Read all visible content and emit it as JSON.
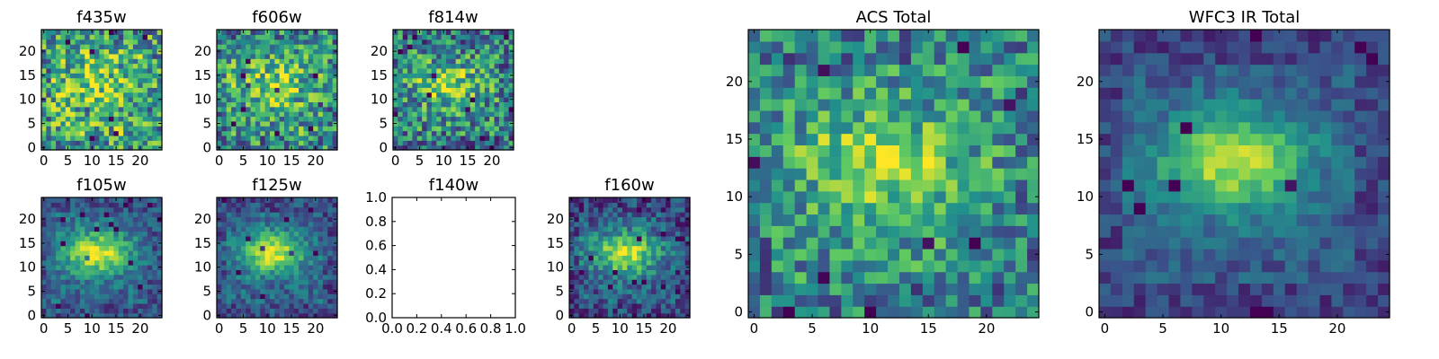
{
  "colormap": {
    "name": "viridis",
    "stops": [
      "#440154",
      "#3b528b",
      "#21918c",
      "#5ec962",
      "#fde725"
    ]
  },
  "chart_data": [
    {
      "type": "heatmap",
      "title": "f435w",
      "shape": [
        25,
        25
      ],
      "seed": 11,
      "noise": 0.36,
      "blob": 0.18,
      "bg": 0.62,
      "xticks": [
        "0",
        "5",
        "10",
        "15",
        "20"
      ],
      "yticks": [
        "0",
        "5",
        "10",
        "15",
        "20"
      ],
      "xlim": [
        0,
        24
      ],
      "ylim": [
        0,
        24
      ]
    },
    {
      "type": "heatmap",
      "title": "f606w",
      "shape": [
        25,
        25
      ],
      "seed": 23,
      "noise": 0.34,
      "blob": 0.28,
      "bg": 0.56,
      "xticks": [
        "0",
        "5",
        "10",
        "15",
        "20"
      ],
      "yticks": [
        "0",
        "5",
        "10",
        "15",
        "20"
      ],
      "xlim": [
        0,
        24
      ],
      "ylim": [
        0,
        24
      ]
    },
    {
      "type": "heatmap",
      "title": "f814w",
      "shape": [
        25,
        25
      ],
      "seed": 37,
      "noise": 0.34,
      "blob": 0.38,
      "bg": 0.48,
      "xticks": [
        "0",
        "5",
        "10",
        "15",
        "20"
      ],
      "yticks": [
        "0",
        "5",
        "10",
        "15",
        "20"
      ],
      "xlim": [
        0,
        24
      ],
      "ylim": [
        0,
        24
      ]
    },
    {
      "type": "heatmap",
      "title": "f105w",
      "shape": [
        25,
        25
      ],
      "seed": 41,
      "noise": 0.16,
      "blob": 0.62,
      "bg": 0.34,
      "xticks": [
        "0",
        "5",
        "10",
        "15",
        "20"
      ],
      "yticks": [
        "0",
        "5",
        "10",
        "15",
        "20"
      ],
      "xlim": [
        0,
        24
      ],
      "ylim": [
        0,
        24
      ]
    },
    {
      "type": "heatmap",
      "title": "f125w",
      "shape": [
        25,
        25
      ],
      "seed": 53,
      "noise": 0.16,
      "blob": 0.62,
      "bg": 0.32,
      "xticks": [
        "0",
        "5",
        "10",
        "15",
        "20"
      ],
      "yticks": [
        "0",
        "5",
        "10",
        "15",
        "20"
      ],
      "xlim": [
        0,
        24
      ],
      "ylim": [
        0,
        24
      ]
    },
    {
      "type": "empty",
      "title": "f140w",
      "xticks": [
        "0.0",
        "0.2",
        "0.4",
        "0.6",
        "0.8",
        "1.0"
      ],
      "yticks": [
        "0.0",
        "0.2",
        "0.4",
        "0.6",
        "0.8",
        "1.0"
      ],
      "xlim": [
        0,
        1
      ],
      "ylim": [
        0,
        1
      ]
    },
    {
      "type": "heatmap",
      "title": "f160w",
      "shape": [
        25,
        25
      ],
      "seed": 67,
      "noise": 0.2,
      "blob": 0.62,
      "bg": 0.3,
      "xticks": [
        "0",
        "5",
        "10",
        "15",
        "20"
      ],
      "yticks": [
        "0",
        "5",
        "10",
        "15",
        "20"
      ],
      "xlim": [
        0,
        24
      ],
      "ylim": [
        0,
        24
      ]
    },
    {
      "type": "heatmap",
      "title": "ACS Total",
      "shape": [
        25,
        25
      ],
      "seed": 79,
      "noise": 0.28,
      "blob": 0.4,
      "bg": 0.5,
      "xticks": [
        "0",
        "5",
        "10",
        "15",
        "20"
      ],
      "yticks": [
        "0",
        "5",
        "10",
        "15",
        "20"
      ],
      "xlim": [
        0,
        24
      ],
      "ylim": [
        0,
        24
      ]
    },
    {
      "type": "heatmap",
      "title": "WFC3 IR Total",
      "shape": [
        25,
        25
      ],
      "seed": 97,
      "noise": 0.12,
      "blob": 0.62,
      "bg": 0.28,
      "xticks": [
        "0",
        "5",
        "10",
        "15",
        "20"
      ],
      "yticks": [
        "0",
        "5",
        "10",
        "15",
        "20"
      ],
      "xlim": [
        0,
        24
      ],
      "ylim": [
        0,
        24
      ]
    }
  ]
}
